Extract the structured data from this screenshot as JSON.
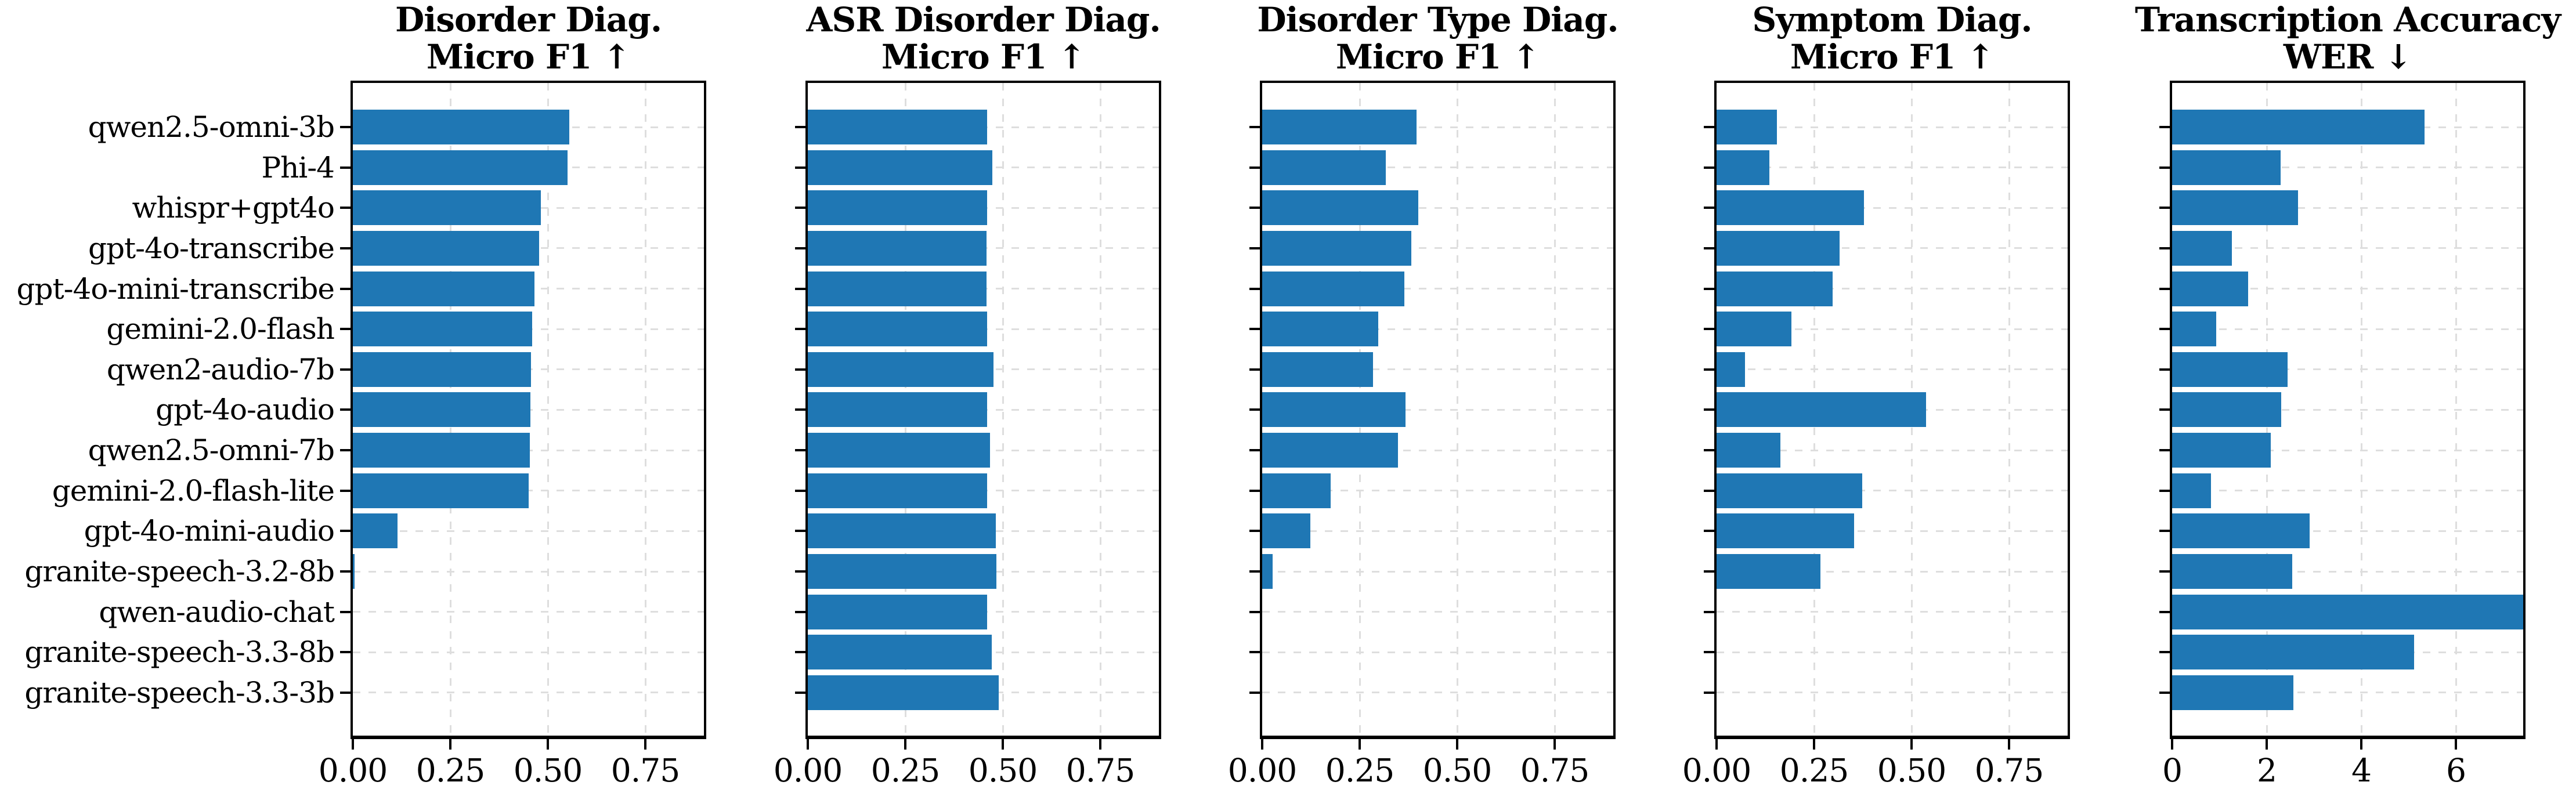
{
  "style": {
    "background": "#ffffff",
    "bar_color": "#1f77b4",
    "grid_color": "#dedede",
    "spine_color": "#000000",
    "text_color": "#000000"
  },
  "models": [
    "qwen2.5-omni-3b",
    "Phi-4",
    "whispr+gpt4o",
    "gpt-4o-transcribe",
    "gpt-4o-mini-transcribe",
    "gemini-2.0-flash",
    "qwen2-audio-7b",
    "gpt-4o-audio",
    "qwen2.5-omni-7b",
    "gemini-2.0-flash-lite",
    "gpt-4o-mini-audio",
    "granite-speech-3.2-8b",
    "qwen-audio-chat",
    "granite-speech-3.3-8b",
    "granite-speech-3.3-3b"
  ],
  "chart_data": [
    {
      "type": "bar",
      "orientation": "horizontal",
      "title_lines": [
        "Disorder Diag.",
        "Micro F1 ↑"
      ],
      "xlabel": "",
      "ylabel": "",
      "xlim": [
        0,
        0.9
      ],
      "xtick_values": [
        0,
        0.25,
        0.5,
        0.75
      ],
      "xtick_labels": [
        "0.00",
        "0.25",
        "0.50",
        "0.75"
      ],
      "grid": true,
      "categories": [
        "qwen2.5-omni-3b",
        "Phi-4",
        "whispr+gpt4o",
        "gpt-4o-transcribe",
        "gpt-4o-mini-transcribe",
        "gemini-2.0-flash",
        "qwen2-audio-7b",
        "gpt-4o-audio",
        "qwen2.5-omni-7b",
        "gemini-2.0-flash-lite",
        "gpt-4o-mini-audio",
        "granite-speech-3.2-8b",
        "qwen-audio-chat",
        "granite-speech-3.3-8b",
        "granite-speech-3.3-3b"
      ],
      "values": [
        0.555,
        0.551,
        0.482,
        0.477,
        0.465,
        0.46,
        0.457,
        0.455,
        0.453,
        0.45,
        0.115,
        0.005,
        0,
        0,
        0
      ]
    },
    {
      "type": "bar",
      "orientation": "horizontal",
      "title_lines": [
        "ASR Disorder Diag.",
        "Micro F1 ↑"
      ],
      "xlabel": "",
      "ylabel": "",
      "xlim": [
        0,
        0.9
      ],
      "xtick_values": [
        0,
        0.25,
        0.5,
        0.75
      ],
      "xtick_labels": [
        "0.00",
        "0.25",
        "0.50",
        "0.75"
      ],
      "grid": true,
      "categories": [
        "qwen2.5-omni-3b",
        "Phi-4",
        "whispr+gpt4o",
        "gpt-4o-transcribe",
        "gpt-4o-mini-transcribe",
        "gemini-2.0-flash",
        "qwen2-audio-7b",
        "gpt-4o-audio",
        "qwen2.5-omni-7b",
        "gemini-2.0-flash-lite",
        "gpt-4o-mini-audio",
        "granite-speech-3.2-8b",
        "qwen-audio-chat",
        "granite-speech-3.3-8b",
        "granite-speech-3.3-3b"
      ],
      "values": [
        0.459,
        0.473,
        0.46,
        0.458,
        0.458,
        0.459,
        0.476,
        0.459,
        0.467,
        0.459,
        0.482,
        0.483,
        0.459,
        0.472,
        0.49
      ]
    },
    {
      "type": "bar",
      "orientation": "horizontal",
      "title_lines": [
        "Disorder Type Diag.",
        "Micro F1 ↑"
      ],
      "xlabel": "",
      "ylabel": "",
      "xlim": [
        0,
        0.9
      ],
      "xtick_values": [
        0,
        0.25,
        0.5,
        0.75
      ],
      "xtick_labels": [
        "0.00",
        "0.25",
        "0.50",
        "0.75"
      ],
      "grid": true,
      "categories": [
        "qwen2.5-omni-3b",
        "Phi-4",
        "whispr+gpt4o",
        "gpt-4o-transcribe",
        "gpt-4o-mini-transcribe",
        "gemini-2.0-flash",
        "qwen2-audio-7b",
        "gpt-4o-audio",
        "qwen2.5-omni-7b",
        "gemini-2.0-flash-lite",
        "gpt-4o-mini-audio",
        "granite-speech-3.2-8b",
        "qwen-audio-chat",
        "granite-speech-3.3-8b",
        "granite-speech-3.3-3b"
      ],
      "values": [
        0.395,
        0.317,
        0.4,
        0.382,
        0.365,
        0.298,
        0.284,
        0.367,
        0.348,
        0.175,
        0.123,
        0.027,
        0,
        0,
        0
      ]
    },
    {
      "type": "bar",
      "orientation": "horizontal",
      "title_lines": [
        "Symptom Diag.",
        "Micro F1 ↑"
      ],
      "xlabel": "",
      "ylabel": "",
      "xlim": [
        0,
        0.9
      ],
      "xtick_values": [
        0,
        0.25,
        0.5,
        0.75
      ],
      "xtick_labels": [
        "0.00",
        "0.25",
        "0.50",
        "0.75"
      ],
      "grid": true,
      "categories": [
        "qwen2.5-omni-3b",
        "Phi-4",
        "whispr+gpt4o",
        "gpt-4o-transcribe",
        "gpt-4o-mini-transcribe",
        "gemini-2.0-flash",
        "qwen2-audio-7b",
        "gpt-4o-audio",
        "qwen2.5-omni-7b",
        "gemini-2.0-flash-lite",
        "gpt-4o-mini-audio",
        "granite-speech-3.2-8b",
        "qwen-audio-chat",
        "granite-speech-3.3-8b",
        "granite-speech-3.3-3b"
      ],
      "values": [
        0.154,
        0.136,
        0.378,
        0.316,
        0.298,
        0.192,
        0.073,
        0.537,
        0.164,
        0.373,
        0.352,
        0.267,
        0,
        0,
        0
      ]
    },
    {
      "type": "bar",
      "orientation": "horizontal",
      "title_lines": [
        "Transcription Accuracy",
        "WER ↓"
      ],
      "xlabel": "",
      "ylabel": "",
      "xlim": [
        0,
        7.42
      ],
      "xtick_values": [
        0,
        2,
        4,
        6
      ],
      "xtick_labels": [
        "0",
        "2",
        "4",
        "6"
      ],
      "grid": true,
      "categories": [
        "qwen2.5-omni-3b",
        "Phi-4",
        "whispr+gpt4o",
        "gpt-4o-transcribe",
        "gpt-4o-mini-transcribe",
        "gemini-2.0-flash",
        "qwen2-audio-7b",
        "gpt-4o-audio",
        "qwen2.5-omni-7b",
        "gemini-2.0-flash-lite",
        "gpt-4o-mini-audio",
        "granite-speech-3.2-8b",
        "qwen-audio-chat",
        "granite-speech-3.3-8b",
        "granite-speech-3.3-3b"
      ],
      "values": [
        5.33,
        2.29,
        2.66,
        1.26,
        1.61,
        0.93,
        2.44,
        2.3,
        2.09,
        0.82,
        2.91,
        2.54,
        7.42,
        5.11,
        2.56
      ]
    }
  ]
}
